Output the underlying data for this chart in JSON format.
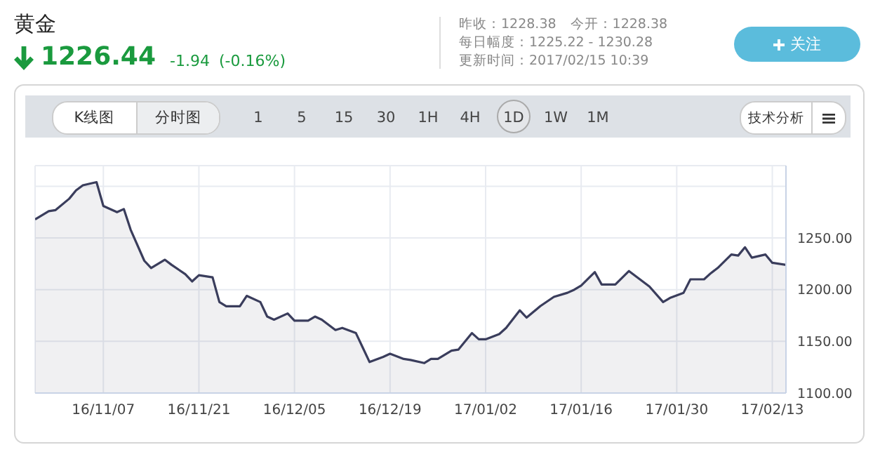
{
  "chart_data": {
    "type": "area",
    "title": "黄金",
    "annotations": [
      "1226.44",
      "-1.94",
      "(-0.16%)",
      "昨收：1228.38",
      "今开：1228.38",
      "每日幅度：1225.22 - 1230.28",
      "更新时间：2017/02/15 10:39",
      "关注",
      "K线图",
      "分时图",
      "1",
      "5",
      "15",
      "30",
      "1H",
      "4H",
      "1D",
      "1W",
      "1M",
      "技术分析"
    ],
    "x": [
      "2016-10-28",
      "2016-10-30",
      "2016-10-31",
      "2016-11-02",
      "2016-11-03",
      "2016-11-04",
      "2016-11-06",
      "2016-11-07",
      "2016-11-09",
      "2016-11-10",
      "2016-11-11",
      "2016-11-13",
      "2016-11-14",
      "2016-11-16",
      "2016-11-17",
      "2016-11-19",
      "2016-11-20",
      "2016-11-21",
      "2016-11-23",
      "2016-11-24",
      "2016-11-25",
      "2016-11-27",
      "2016-11-28",
      "2016-11-30",
      "2016-12-01",
      "2016-12-02",
      "2016-12-04",
      "2016-12-05",
      "2016-12-07",
      "2016-12-08",
      "2016-12-09",
      "2016-12-11",
      "2016-12-12",
      "2016-12-14",
      "2016-12-15",
      "2016-12-16",
      "2016-12-18",
      "2016-12-19",
      "2016-12-21",
      "2016-12-22",
      "2016-12-24",
      "2016-12-25",
      "2016-12-26",
      "2016-12-28",
      "2016-12-29",
      "2016-12-31",
      "2017-01-01",
      "2017-01-02",
      "2017-01-04",
      "2017-01-05",
      "2017-01-07",
      "2017-01-08",
      "2017-01-10",
      "2017-01-12",
      "2017-01-14",
      "2017-01-15",
      "2017-01-16",
      "2017-01-18",
      "2017-01-19",
      "2017-01-21",
      "2017-01-23",
      "2017-01-26",
      "2017-01-28",
      "2017-01-29",
      "2017-01-31",
      "2017-02-01",
      "2017-02-03",
      "2017-02-04",
      "2017-02-05",
      "2017-02-07",
      "2017-02-08",
      "2017-02-09",
      "2017-02-10",
      "2017-02-12",
      "2017-02-13",
      "2017-02-15"
    ],
    "series": [
      {
        "color": "#3a3d5c",
        "values": [
          1268,
          1276,
          1277,
          1288,
          1296,
          1301,
          1304,
          1281,
          1275,
          1278,
          1258,
          1228,
          1221,
          1229,
          1224,
          1215,
          1208,
          1214,
          1212,
          1188,
          1184,
          1184,
          1194,
          1188,
          1174,
          1171,
          1177,
          1170,
          1170,
          1174,
          1171,
          1161,
          1163,
          1158,
          1144,
          1130,
          1135,
          1138,
          1133,
          1132,
          1129,
          1133,
          1133,
          1141,
          1142,
          1158,
          1152,
          1152,
          1157,
          1163,
          1180,
          1173,
          1184,
          1193,
          1197,
          1200,
          1204,
          1217,
          1205,
          1205,
          1218,
          1203,
          1188,
          1192,
          1197,
          1210,
          1210,
          1216,
          1221,
          1234,
          1233,
          1241,
          1231,
          1234,
          1226,
          1224
        ]
      }
    ],
    "xlim": [
      "2016-10-28",
      "2017-02-15"
    ],
    "xticks": [
      {
        "value": "2016-11-07",
        "label": "16/11/07"
      },
      {
        "value": "2016-11-21",
        "label": "16/11/21"
      },
      {
        "value": "2016-12-05",
        "label": "16/12/05"
      },
      {
        "value": "2016-12-19",
        "label": "16/12/19"
      },
      {
        "value": "2017-01-02",
        "label": "17/01/02"
      },
      {
        "value": "2017-01-16",
        "label": "17/01/16"
      },
      {
        "value": "2017-01-30",
        "label": "17/01/30"
      },
      {
        "value": "2017-02-13",
        "label": "17/02/13"
      }
    ],
    "ylim": [
      1100,
      1320
    ],
    "yticks": [
      {
        "value": 1100,
        "label": "1100.00"
      },
      {
        "value": 1150,
        "label": "1150.00"
      },
      {
        "value": 1200,
        "label": "1200.00"
      },
      {
        "value": 1250,
        "label": "1250.00"
      },
      {
        "value": 1300,
        "label": null
      }
    ],
    "grid": true
  }
}
